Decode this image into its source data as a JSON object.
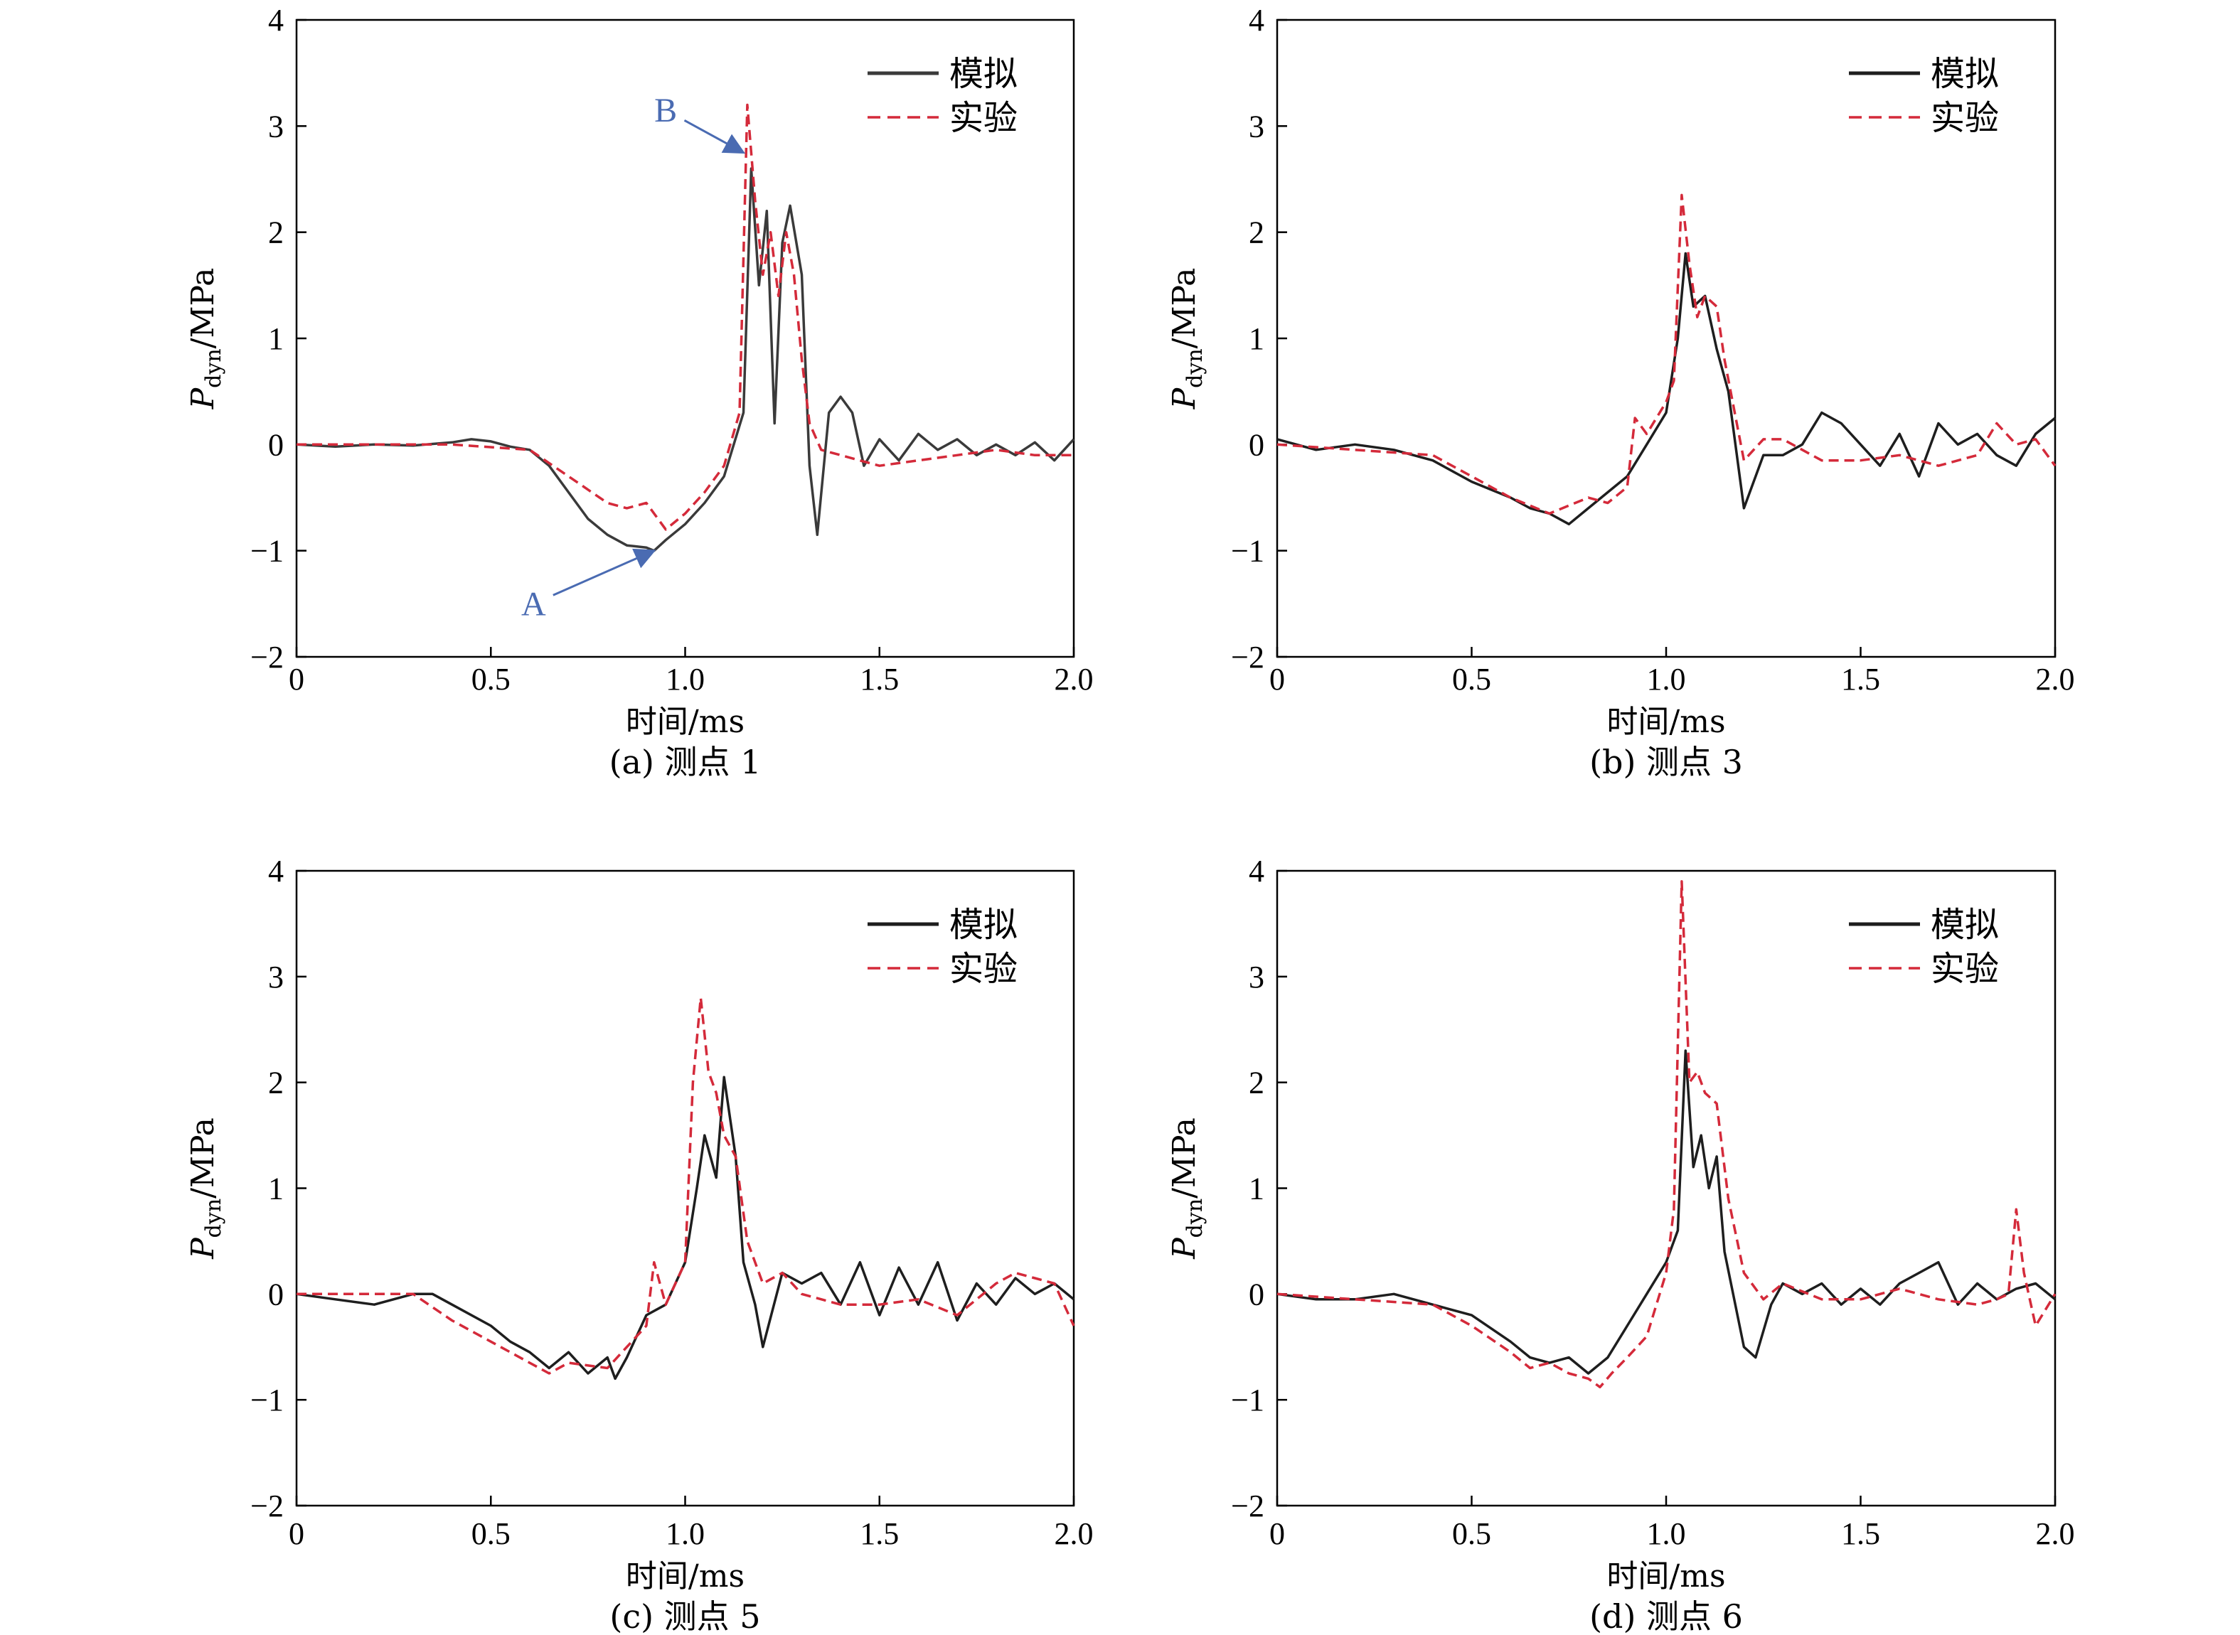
{
  "chart_data": [
    {
      "type": "line",
      "caption": "(a) 测点 1",
      "xlabel": "时间/ms",
      "ylabel": {
        "main": "P",
        "sub": "dyn",
        "unit": "/MPa"
      },
      "xlim": [
        0,
        2.0
      ],
      "ylim": [
        -2,
        4
      ],
      "xticks": [
        "0",
        "0.5",
        "1.0",
        "1.5",
        "2.0"
      ],
      "yticks": [
        "−2",
        "−1",
        "0",
        "1",
        "2",
        "3",
        "4"
      ],
      "legend": "top-right",
      "annotations": [
        {
          "label": "A",
          "point": [
            0.92,
            -1.0
          ],
          "text_at": [
            0.61,
            -1.5
          ]
        },
        {
          "label": "B",
          "point": [
            1.15,
            2.75
          ],
          "text_at": [
            0.95,
            3.15
          ]
        }
      ],
      "series": [
        {
          "name": "模拟",
          "style": "solid",
          "color": "#3a3a3a",
          "x": [
            0,
            0.1,
            0.2,
            0.3,
            0.4,
            0.45,
            0.5,
            0.55,
            0.6,
            0.65,
            0.7,
            0.75,
            0.8,
            0.85,
            0.9,
            0.92,
            0.95,
            1.0,
            1.05,
            1.1,
            1.15,
            1.17,
            1.19,
            1.21,
            1.23,
            1.25,
            1.27,
            1.3,
            1.32,
            1.34,
            1.37,
            1.4,
            1.43,
            1.46,
            1.5,
            1.55,
            1.6,
            1.65,
            1.7,
            1.75,
            1.8,
            1.85,
            1.9,
            1.95,
            2.0
          ],
          "y": [
            0,
            -0.02,
            0,
            -0.01,
            0.02,
            0.05,
            0.03,
            -0.02,
            -0.05,
            -0.2,
            -0.45,
            -0.7,
            -0.85,
            -0.95,
            -0.97,
            -1.0,
            -0.9,
            -0.75,
            -0.55,
            -0.3,
            0.3,
            2.6,
            1.5,
            2.2,
            0.2,
            1.9,
            2.25,
            1.6,
            -0.2,
            -0.85,
            0.3,
            0.45,
            0.3,
            -0.2,
            0.05,
            -0.15,
            0.1,
            -0.05,
            0.05,
            -0.1,
            0,
            -0.1,
            0.02,
            -0.15,
            0.05
          ]
        },
        {
          "name": "实验",
          "style": "dashed",
          "color": "#d42a3a",
          "x": [
            0,
            0.2,
            0.4,
            0.6,
            0.7,
            0.8,
            0.85,
            0.9,
            0.95,
            1.0,
            1.05,
            1.1,
            1.14,
            1.16,
            1.18,
            1.2,
            1.22,
            1.24,
            1.26,
            1.28,
            1.3,
            1.32,
            1.35,
            1.4,
            1.5,
            1.6,
            1.7,
            1.8,
            1.9,
            2.0
          ],
          "y": [
            0,
            0,
            0,
            -0.05,
            -0.3,
            -0.55,
            -0.6,
            -0.55,
            -0.8,
            -0.65,
            -0.45,
            -0.2,
            0.3,
            3.2,
            2.3,
            1.6,
            2.0,
            1.4,
            2.0,
            1.6,
            0.8,
            0.2,
            -0.05,
            -0.1,
            -0.2,
            -0.15,
            -0.1,
            -0.05,
            -0.1,
            -0.1
          ]
        }
      ]
    },
    {
      "type": "line",
      "caption": "(b) 测点 3",
      "xlabel": "时间/ms",
      "ylabel": {
        "main": "P",
        "sub": "dyn",
        "unit": "/MPa"
      },
      "xlim": [
        0,
        2.0
      ],
      "ylim": [
        -2,
        4
      ],
      "xticks": [
        "0",
        "0.5",
        "1.0",
        "1.5",
        "2.0"
      ],
      "yticks": [
        "−2",
        "−1",
        "0",
        "1",
        "2",
        "3",
        "4"
      ],
      "legend": "top-right",
      "series": [
        {
          "name": "模拟",
          "style": "solid",
          "color": "#1e1e1e",
          "x": [
            0,
            0.1,
            0.2,
            0.3,
            0.4,
            0.5,
            0.6,
            0.65,
            0.7,
            0.75,
            0.8,
            0.85,
            0.9,
            0.95,
            1.0,
            1.03,
            1.05,
            1.07,
            1.1,
            1.13,
            1.16,
            1.2,
            1.25,
            1.3,
            1.35,
            1.4,
            1.45,
            1.5,
            1.55,
            1.6,
            1.65,
            1.7,
            1.75,
            1.8,
            1.85,
            1.9,
            1.95,
            2.0
          ],
          "y": [
            0.05,
            -0.05,
            0,
            -0.05,
            -0.15,
            -0.35,
            -0.5,
            -0.6,
            -0.65,
            -0.75,
            -0.6,
            -0.45,
            -0.3,
            0,
            0.3,
            1.0,
            1.8,
            1.3,
            1.4,
            0.9,
            0.5,
            -0.6,
            -0.1,
            -0.1,
            0,
            0.3,
            0.2,
            0,
            -0.2,
            0.1,
            -0.3,
            0.2,
            0,
            0.1,
            -0.1,
            -0.2,
            0.1,
            0.25
          ]
        },
        {
          "name": "实验",
          "style": "dashed",
          "color": "#d42a3a",
          "x": [
            0,
            0.2,
            0.4,
            0.5,
            0.6,
            0.7,
            0.8,
            0.85,
            0.9,
            0.92,
            0.95,
            1.0,
            1.02,
            1.04,
            1.06,
            1.08,
            1.1,
            1.13,
            1.15,
            1.2,
            1.25,
            1.3,
            1.4,
            1.5,
            1.6,
            1.7,
            1.8,
            1.85,
            1.9,
            1.95,
            2.0
          ],
          "y": [
            0,
            -0.05,
            -0.1,
            -0.3,
            -0.5,
            -0.65,
            -0.5,
            -0.55,
            -0.4,
            0.25,
            0.1,
            0.4,
            0.6,
            2.35,
            1.7,
            1.2,
            1.4,
            1.3,
            0.8,
            -0.15,
            0.05,
            0.05,
            -0.15,
            -0.15,
            -0.1,
            -0.2,
            -0.1,
            0.2,
            0,
            0.05,
            -0.2
          ]
        }
      ]
    },
    {
      "type": "line",
      "caption": "(c) 测点 5",
      "xlabel": "时间/ms",
      "ylabel": {
        "main": "P",
        "sub": "dyn",
        "unit": "/MPa"
      },
      "xlim": [
        0,
        2.0
      ],
      "ylim": [
        -2,
        4
      ],
      "xticks": [
        "0",
        "0.5",
        "1.0",
        "1.5",
        "2.0"
      ],
      "yticks": [
        "−2",
        "−1",
        "0",
        "1",
        "2",
        "3",
        "4"
      ],
      "legend": "top-right",
      "series": [
        {
          "name": "模拟",
          "style": "solid",
          "color": "#1e1e1e",
          "x": [
            0,
            0.1,
            0.2,
            0.3,
            0.35,
            0.4,
            0.5,
            0.55,
            0.6,
            0.65,
            0.7,
            0.75,
            0.8,
            0.82,
            0.85,
            0.9,
            0.95,
            1.0,
            1.03,
            1.05,
            1.08,
            1.1,
            1.13,
            1.15,
            1.18,
            1.2,
            1.25,
            1.3,
            1.35,
            1.4,
            1.45,
            1.5,
            1.55,
            1.6,
            1.65,
            1.7,
            1.75,
            1.8,
            1.85,
            1.9,
            1.95,
            2.0
          ],
          "y": [
            0,
            -0.05,
            -0.1,
            0,
            0,
            -0.1,
            -0.3,
            -0.45,
            -0.55,
            -0.7,
            -0.55,
            -0.75,
            -0.6,
            -0.8,
            -0.6,
            -0.2,
            -0.1,
            0.3,
            1.0,
            1.5,
            1.1,
            2.05,
            1.3,
            0.3,
            -0.1,
            -0.5,
            0.2,
            0.1,
            0.2,
            -0.1,
            0.3,
            -0.2,
            0.25,
            -0.1,
            0.3,
            -0.25,
            0.1,
            -0.1,
            0.15,
            0,
            0.1,
            -0.05
          ]
        },
        {
          "name": "实验",
          "style": "dashed",
          "color": "#d42a3a",
          "x": [
            0,
            0.1,
            0.3,
            0.4,
            0.5,
            0.6,
            0.65,
            0.7,
            0.8,
            0.85,
            0.9,
            0.92,
            0.95,
            1.0,
            1.02,
            1.04,
            1.06,
            1.08,
            1.1,
            1.13,
            1.16,
            1.2,
            1.25,
            1.3,
            1.4,
            1.5,
            1.6,
            1.7,
            1.8,
            1.85,
            1.9,
            1.95,
            2.0
          ],
          "y": [
            0,
            0,
            0,
            -0.25,
            -0.45,
            -0.65,
            -0.75,
            -0.65,
            -0.7,
            -0.5,
            -0.3,
            0.3,
            -0.1,
            0.3,
            2.0,
            2.8,
            2.1,
            1.9,
            1.5,
            1.3,
            0.5,
            0.1,
            0.2,
            0,
            -0.1,
            -0.1,
            -0.05,
            -0.2,
            0.1,
            0.2,
            0.15,
            0.1,
            -0.3
          ]
        }
      ]
    },
    {
      "type": "line",
      "caption": "(d) 测点 6",
      "xlabel": "时间/ms",
      "ylabel": {
        "main": "P",
        "sub": "dyn",
        "unit": "/MPa"
      },
      "xlim": [
        0,
        2.0
      ],
      "ylim": [
        -2,
        4
      ],
      "xticks": [
        "0",
        "0.5",
        "1.0",
        "1.5",
        "2.0"
      ],
      "yticks": [
        "−2",
        "−1",
        "0",
        "1",
        "2",
        "3",
        "4"
      ],
      "legend": "top-right",
      "series": [
        {
          "name": "模拟",
          "style": "solid",
          "color": "#1e1e1e",
          "x": [
            0,
            0.1,
            0.2,
            0.3,
            0.4,
            0.5,
            0.6,
            0.65,
            0.7,
            0.75,
            0.8,
            0.85,
            0.9,
            0.95,
            1.0,
            1.03,
            1.05,
            1.07,
            1.09,
            1.11,
            1.13,
            1.15,
            1.2,
            1.23,
            1.27,
            1.3,
            1.35,
            1.4,
            1.45,
            1.5,
            1.55,
            1.6,
            1.65,
            1.7,
            1.75,
            1.8,
            1.85,
            1.9,
            1.95,
            2.0
          ],
          "y": [
            0,
            -0.05,
            -0.05,
            0,
            -0.1,
            -0.2,
            -0.45,
            -0.6,
            -0.65,
            -0.6,
            -0.75,
            -0.6,
            -0.3,
            0,
            0.3,
            0.6,
            2.3,
            1.2,
            1.5,
            1.0,
            1.3,
            0.4,
            -0.5,
            -0.6,
            -0.1,
            0.1,
            0,
            0.1,
            -0.1,
            0.05,
            -0.1,
            0.1,
            0.2,
            0.3,
            -0.1,
            0.1,
            -0.05,
            0.05,
            0.1,
            -0.05
          ]
        },
        {
          "name": "实验",
          "style": "dashed",
          "color": "#d42a3a",
          "x": [
            0,
            0.2,
            0.4,
            0.5,
            0.6,
            0.65,
            0.7,
            0.75,
            0.8,
            0.83,
            0.86,
            0.9,
            0.95,
            1.0,
            1.02,
            1.04,
            1.06,
            1.08,
            1.1,
            1.13,
            1.16,
            1.2,
            1.25,
            1.3,
            1.4,
            1.5,
            1.6,
            1.7,
            1.8,
            1.85,
            1.88,
            1.9,
            1.92,
            1.95,
            2.0
          ],
          "y": [
            0,
            -0.05,
            -0.1,
            -0.3,
            -0.55,
            -0.7,
            -0.65,
            -0.75,
            -0.8,
            -0.88,
            -0.75,
            -0.6,
            -0.4,
            0.2,
            0.8,
            3.9,
            2.0,
            2.1,
            1.9,
            1.8,
            0.9,
            0.2,
            -0.05,
            0.1,
            -0.05,
            -0.05,
            0.05,
            -0.05,
            -0.1,
            -0.05,
            0,
            0.8,
            0.2,
            -0.3,
            0
          ]
        }
      ]
    }
  ]
}
